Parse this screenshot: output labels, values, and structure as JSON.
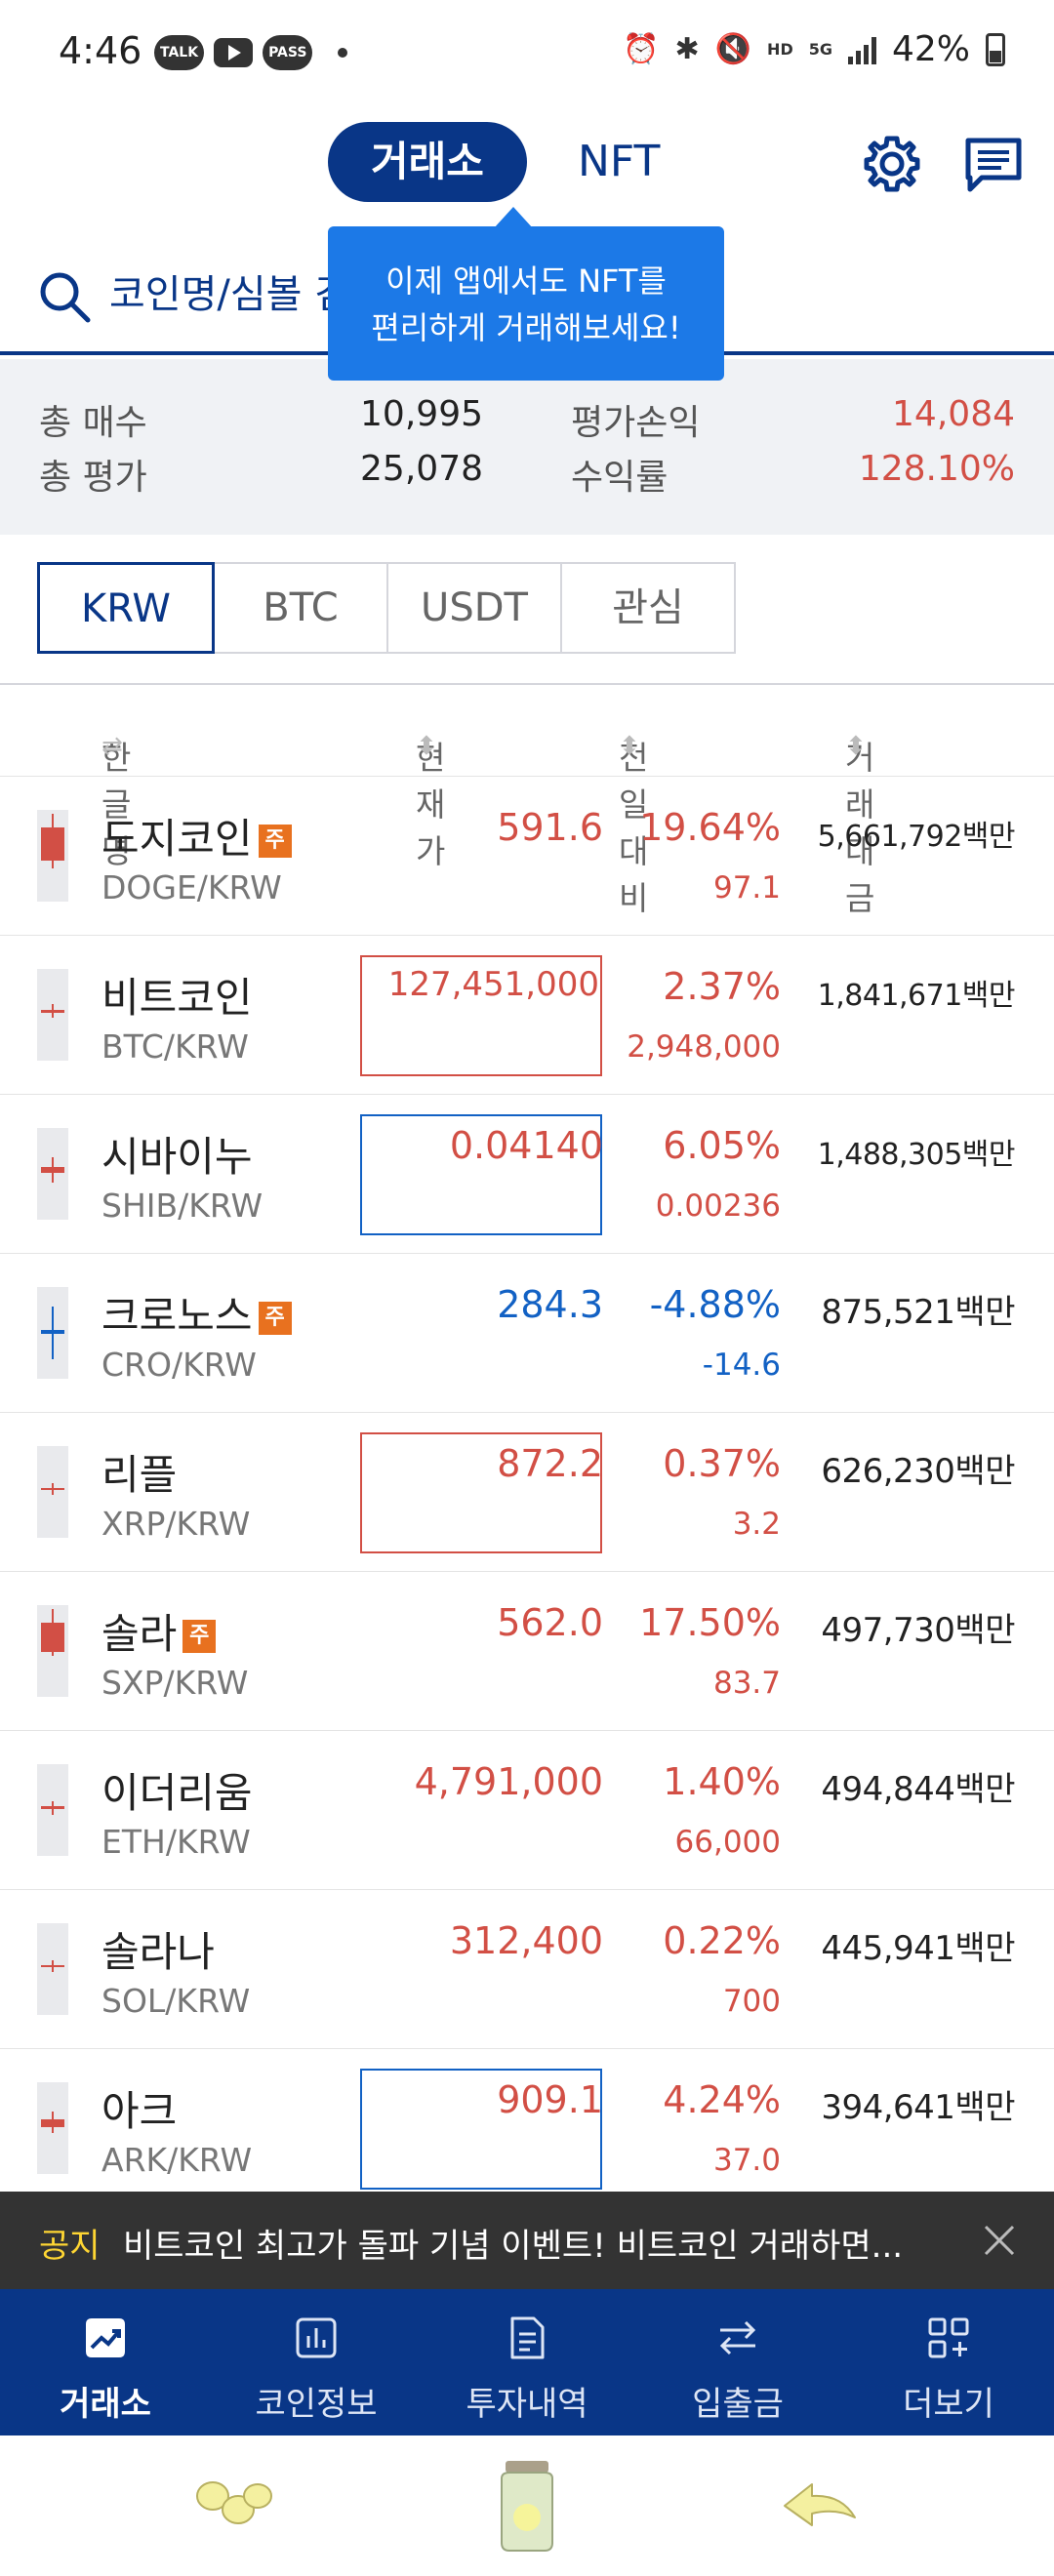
{
  "status_bar": {
    "time": "4:46",
    "battery": "42%",
    "talk_label": "TALK",
    "pass_label": "PASS",
    "hd_label": "HD",
    "net_label": "5G"
  },
  "header": {
    "tab_exchange": "거래소",
    "tab_nft": "NFT"
  },
  "search": {
    "placeholder": "코인명/심볼 검색"
  },
  "tooltip": {
    "line1": "이제 앱에서도 NFT를",
    "line2": "편리하게 거래해보세요!"
  },
  "summary": {
    "total_buy_label": "총 매수",
    "total_buy_value": "10,995",
    "total_eval_label": "총 평가",
    "total_eval_value": "25,078",
    "pnl_label": "평가손익",
    "pnl_value": "14,084",
    "rate_label": "수익률",
    "rate_value": "128.10%"
  },
  "market_tabs": [
    "KRW",
    "BTC",
    "USDT",
    "관심"
  ],
  "columns": {
    "name": "한글명",
    "price": "현재가",
    "change": "전일대비",
    "volume": "거래대금"
  },
  "coins": [
    {
      "name": "도지코인",
      "badge": "주",
      "symbol": "DOGE/KRW",
      "price": "591.6",
      "pct": "19.64%",
      "chg": "97.1",
      "volume": "5,661,792백만",
      "dir": "up"
    },
    {
      "name": "비트코인",
      "badge": "",
      "symbol": "BTC/KRW",
      "price": "127,451,000",
      "pct": "2.37%",
      "chg": "2,948,000",
      "volume": "1,841,671백만",
      "dir": "up"
    },
    {
      "name": "시바이누",
      "badge": "",
      "symbol": "SHIB/KRW",
      "price": "0.04140",
      "pct": "6.05%",
      "chg": "0.00236",
      "volume": "1,488,305백만",
      "dir": "up"
    },
    {
      "name": "크로노스",
      "badge": "주",
      "symbol": "CRO/KRW",
      "price": "284.3",
      "pct": "-4.88%",
      "chg": "-14.6",
      "volume": "875,521백만",
      "dir": "down"
    },
    {
      "name": "리플",
      "badge": "",
      "symbol": "XRP/KRW",
      "price": "872.2",
      "pct": "0.37%",
      "chg": "3.2",
      "volume": "626,230백만",
      "dir": "up"
    },
    {
      "name": "솔라",
      "badge": "주",
      "symbol": "SXP/KRW",
      "price": "562.0",
      "pct": "17.50%",
      "chg": "83.7",
      "volume": "497,730백만",
      "dir": "up"
    },
    {
      "name": "이더리움",
      "badge": "",
      "symbol": "ETH/KRW",
      "price": "4,791,000",
      "pct": "1.40%",
      "chg": "66,000",
      "volume": "494,844백만",
      "dir": "up"
    },
    {
      "name": "솔라나",
      "badge": "",
      "symbol": "SOL/KRW",
      "price": "312,400",
      "pct": "0.22%",
      "chg": "700",
      "volume": "445,941백만",
      "dir": "up"
    },
    {
      "name": "아크",
      "badge": "",
      "symbol": "ARK/KRW",
      "price": "909.1",
      "pct": "4.24%",
      "chg": "37.0",
      "volume": "394,641백만",
      "dir": "up"
    }
  ],
  "notice": {
    "tag": "공지",
    "text": "비트코인 최고가 돌파 기념 이벤트! 비트코인 거래하면..."
  },
  "bottom_nav": [
    "거래소",
    "코인정보",
    "투자내역",
    "입출금",
    "더보기"
  ],
  "colors": {
    "brand": "#093687",
    "up": "#d24f45",
    "down": "#1261c4",
    "tooltip": "#1c79e7",
    "warning_badge": "#e8711f"
  }
}
